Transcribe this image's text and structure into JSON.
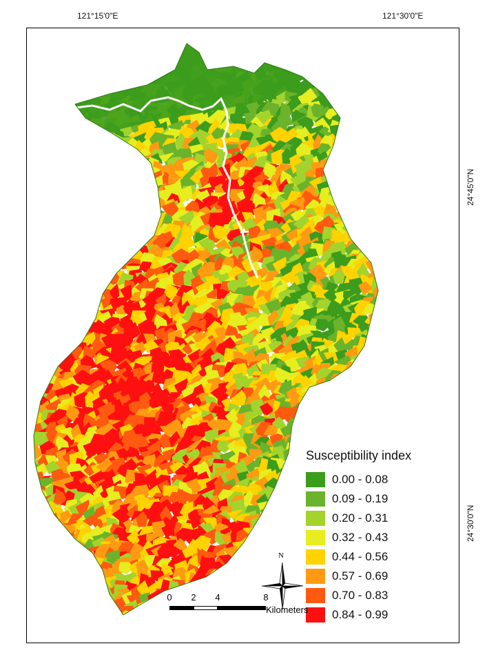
{
  "graticule": {
    "top_labels": [
      "121°15'0\"E",
      "121°30'0\"E"
    ],
    "right_labels": [
      "24°45'0\"N",
      "24°30'0\"N"
    ]
  },
  "legend": {
    "title": "Susceptibility index",
    "classes": [
      {
        "label": "0.00 - 0.08",
        "color": "#3c9c1c"
      },
      {
        "label": "0.09 - 0.19",
        "color": "#6bb32a"
      },
      {
        "label": "0.20 - 0.31",
        "color": "#a3d32d"
      },
      {
        "label": "0.32 - 0.43",
        "color": "#e6ee1f"
      },
      {
        "label": "0.44 - 0.56",
        "color": "#ffd200"
      },
      {
        "label": "0.57 - 0.69",
        "color": "#ff9a12"
      },
      {
        "label": "0.70 - 0.83",
        "color": "#ff5a10"
      },
      {
        "label": "0.84 - 0.99",
        "color": "#ff1010"
      }
    ]
  },
  "north_arrow": {
    "letter": "N",
    "icon": "north-arrow-icon"
  },
  "scale_bar": {
    "ticks": [
      "0",
      "2",
      "4",
      "8"
    ],
    "unit": "Kilometers"
  },
  "colors": {
    "river": "#ffffff",
    "outline": "#000000"
  }
}
